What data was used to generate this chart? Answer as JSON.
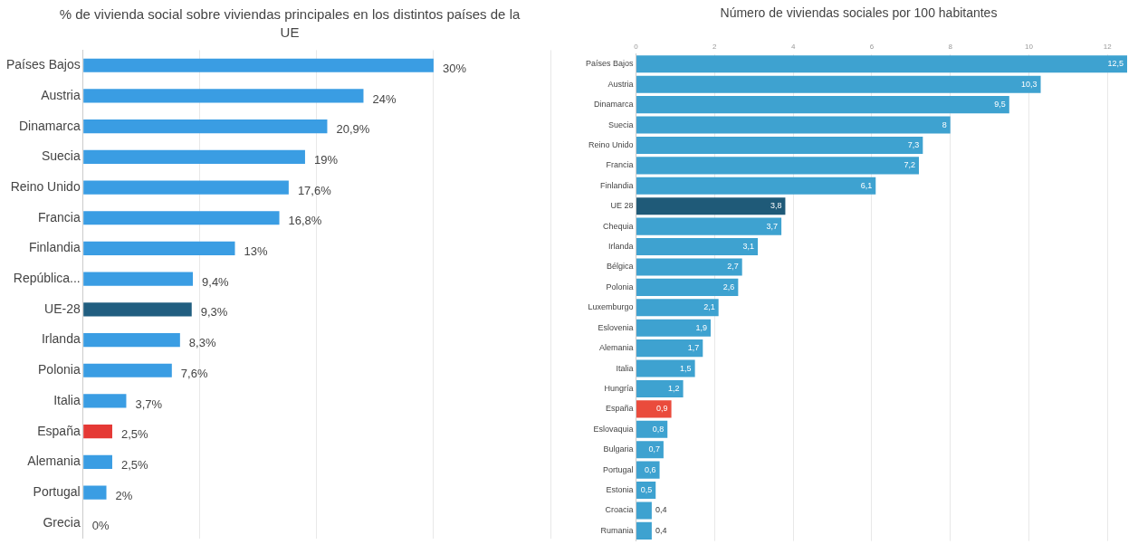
{
  "chart_data": [
    {
      "type": "bar",
      "orientation": "horizontal",
      "title": "% de vivienda social sobre viviendas principales en los distintos países de la UE",
      "categories": [
        "Países Bajos",
        "Austria",
        "Dinamarca",
        "Suecia",
        "Reino Unido",
        "Francia",
        "Finlandia",
        "República...",
        "UE-28",
        "Irlanda",
        "Polonia",
        "Italia",
        "España",
        "Alemania",
        "Portugal",
        "Grecia"
      ],
      "values": [
        30,
        24,
        20.9,
        19,
        17.6,
        16.8,
        13,
        9.4,
        9.3,
        8.3,
        7.6,
        3.7,
        2.5,
        2.5,
        2,
        0
      ],
      "value_labels": [
        "30%",
        "24%",
        "20,9%",
        "19%",
        "17,6%",
        "16,8%",
        "13%",
        "9,4%",
        "9,3%",
        "8,3%",
        "7,6%",
        "3,7%",
        "2,5%",
        "2,5%",
        "2%",
        "0%"
      ],
      "colors": [
        "#3a9de3",
        "#3a9de3",
        "#3a9de3",
        "#3a9de3",
        "#3a9de3",
        "#3a9de3",
        "#3a9de3",
        "#3a9de3",
        "#215e80",
        "#3a9de3",
        "#3a9de3",
        "#3a9de3",
        "#e53935",
        "#3a9de3",
        "#3a9de3",
        "#3a9de3"
      ],
      "xlim": [
        0,
        40
      ],
      "xticks": [
        {
          "value": 0,
          "label": null
        },
        {
          "value": 10,
          "label": null
        },
        {
          "value": 20,
          "label": null
        },
        {
          "value": 30,
          "label": null
        },
        {
          "value": 40,
          "label": null
        }
      ],
      "grid": "x",
      "tick_labels": "y",
      "legend": false
    },
    {
      "type": "bar",
      "orientation": "horizontal",
      "title": "Número de viviendas sociales por 100 habitantes",
      "categories": [
        "Países Bajos",
        "Austria",
        "Dinamarca",
        "Suecia",
        "Reino Unido",
        "Francia",
        "Finlandia",
        "UE 28",
        "Chequia",
        "Irlanda",
        "Bélgica",
        "Polonia",
        "Luxemburgo",
        "Eslovenia",
        "Alemania",
        "Italia",
        "Hungría",
        "España",
        "Eslovaquia",
        "Bulgaria",
        "Portugal",
        "Estonia",
        "Croacia",
        "Rumania"
      ],
      "values": [
        12.5,
        10.3,
        9.5,
        8,
        7.3,
        7.2,
        6.1,
        3.8,
        3.7,
        3.1,
        2.7,
        2.6,
        2.1,
        1.9,
        1.7,
        1.5,
        1.2,
        0.9,
        0.8,
        0.7,
        0.6,
        0.5,
        0.4,
        0.4
      ],
      "value_labels": [
        "12,5",
        "10,3",
        "9,5",
        "8",
        "7,3",
        "7,2",
        "6,1",
        "3,8",
        "3,7",
        "3,1",
        "2,7",
        "2,6",
        "2,1",
        "1,9",
        "1,7",
        "1,5",
        "1,2",
        "0,9",
        "0,8",
        "0,7",
        "0,6",
        "0,5",
        "0,4",
        "0,4"
      ],
      "colors": [
        "#3ea2d0",
        "#3ea2d0",
        "#3ea2d0",
        "#3ea2d0",
        "#3ea2d0",
        "#3ea2d0",
        "#3ea2d0",
        "#1f5a78",
        "#3ea2d0",
        "#3ea2d0",
        "#3ea2d0",
        "#3ea2d0",
        "#3ea2d0",
        "#3ea2d0",
        "#3ea2d0",
        "#3ea2d0",
        "#3ea2d0",
        "#ea4b3c",
        "#3ea2d0",
        "#3ea2d0",
        "#3ea2d0",
        "#3ea2d0",
        "#3ea2d0",
        "#3ea2d0"
      ],
      "xlim": [
        0,
        12.5
      ],
      "xticks": [
        0,
        2,
        4,
        6,
        8,
        10,
        12
      ],
      "grid": "x",
      "legend": false
    }
  ]
}
